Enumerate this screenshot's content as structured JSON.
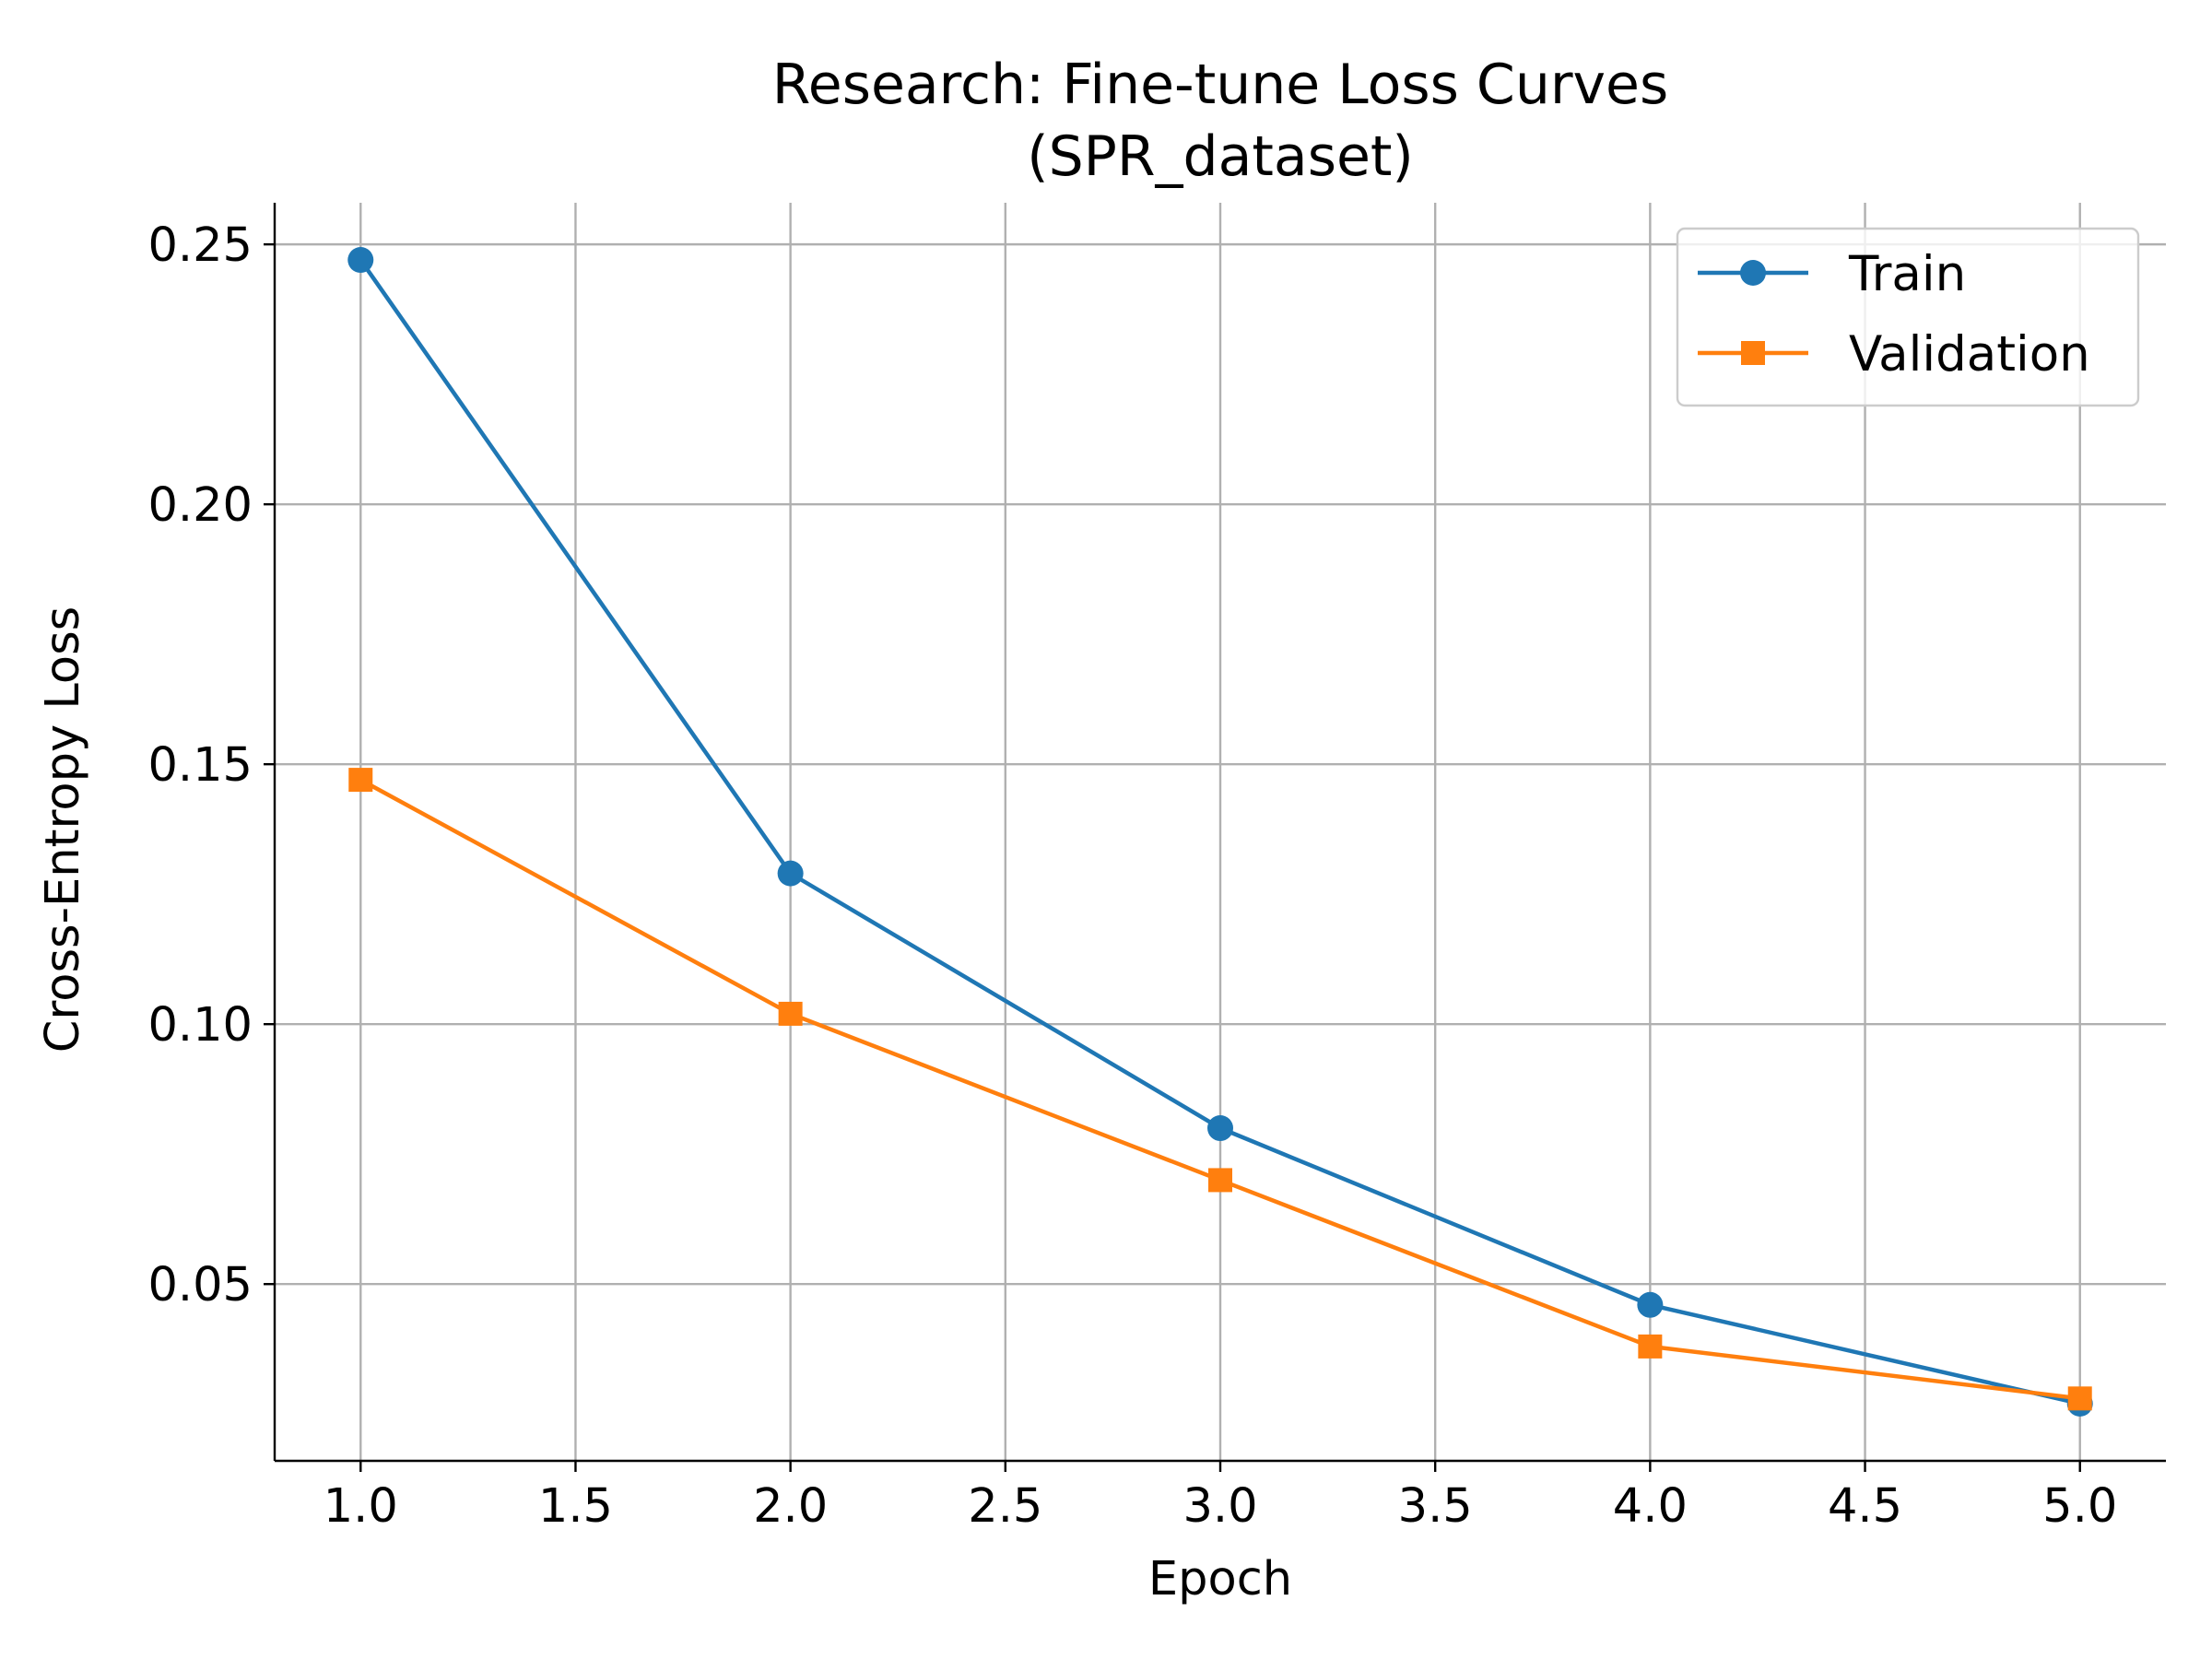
{
  "chart_data": {
    "type": "line",
    "title": "Research: Fine-tune Loss Curves",
    "subtitle": "(SPR_dataset)",
    "xlabel": "Epoch",
    "ylabel": "Cross-Entropy Loss",
    "xlim": [
      0.8,
      5.2
    ],
    "ylim": [
      0.016,
      0.258
    ],
    "xticks": [
      "1.0",
      "1.5",
      "2.0",
      "2.5",
      "3.0",
      "3.5",
      "4.0",
      "4.5",
      "5.0"
    ],
    "yticks": [
      "0.05",
      "0.10",
      "0.15",
      "0.20",
      "0.25"
    ],
    "x": [
      1,
      2,
      3,
      4,
      5
    ],
    "grid": true,
    "legend_position": "top-right",
    "series": [
      {
        "name": "Train",
        "values": [
          0.247,
          0.129,
          0.08,
          0.046,
          0.027
        ],
        "color": "#1f77b4",
        "marker": "circle"
      },
      {
        "name": "Validation",
        "values": [
          0.147,
          0.102,
          0.07,
          0.038,
          0.028
        ],
        "color": "#ff7f0e",
        "marker": "square"
      }
    ]
  }
}
